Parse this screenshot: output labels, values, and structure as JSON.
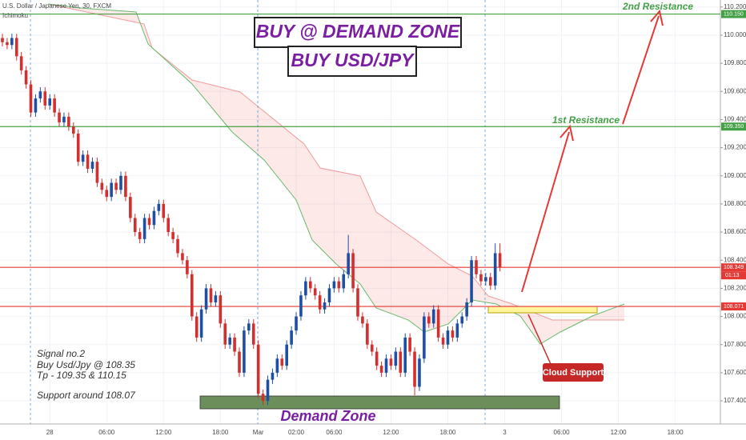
{
  "chart_data": {
    "type": "candlestick",
    "title": "U.S. Dollar / Japanese Yen, 30, FXCM",
    "indicator": "Ichimoku",
    "up_color": "#1f4fa3",
    "down_color": "#d32f2f",
    "grid": true,
    "ylim": [
      107.15,
      110.25
    ],
    "yticks": [
      {
        "value": 110.2,
        "label": "110.200"
      },
      {
        "value": 110.0,
        "label": "110.000"
      },
      {
        "value": 109.8,
        "label": "109.800"
      },
      {
        "value": 109.6,
        "label": "109.600"
      },
      {
        "value": 109.4,
        "label": "109.400"
      },
      {
        "value": 109.2,
        "label": "109.200"
      },
      {
        "value": 109.0,
        "label": "109.000"
      },
      {
        "value": 108.8,
        "label": "108.800"
      },
      {
        "value": 108.6,
        "label": "108.600"
      },
      {
        "value": 108.4,
        "label": "108.400"
      },
      {
        "value": 108.2,
        "label": "108.200"
      },
      {
        "value": 108.0,
        "label": "108.000"
      },
      {
        "value": 107.8,
        "label": "107.800"
      },
      {
        "value": 107.6,
        "label": "107.600"
      },
      {
        "value": 107.4,
        "label": "107.400"
      }
    ],
    "categories": [
      null,
      null,
      null,
      null,
      null,
      null,
      null,
      null,
      null,
      null,
      "28",
      null,
      null,
      null,
      null,
      null,
      null,
      null,
      null,
      null,
      null,
      null,
      "06:00",
      null,
      null,
      null,
      null,
      null,
      null,
      null,
      null,
      null,
      null,
      null,
      "12:00",
      null,
      null,
      null,
      null,
      null,
      null,
      null,
      null,
      null,
      null,
      null,
      "18:00",
      null,
      null,
      null,
      null,
      null,
      null,
      null,
      "Mar",
      null,
      null,
      null,
      null,
      null,
      null,
      null,
      "02:00",
      null,
      null,
      null,
      null,
      null,
      null,
      null,
      "06:00",
      null,
      null,
      null,
      null,
      null,
      null,
      null,
      null,
      null,
      null,
      null,
      "12:00",
      null,
      null,
      null,
      null,
      null,
      null,
      null,
      null,
      null,
      null,
      null,
      "18:00",
      null,
      null,
      null,
      null,
      null,
      null,
      null,
      null,
      null,
      null,
      null,
      "3",
      null,
      null,
      null,
      null,
      null,
      null,
      null,
      null,
      null,
      null,
      null,
      "06:00",
      null,
      null,
      null,
      null,
      null,
      null,
      null,
      null,
      null,
      null,
      null,
      "12:00",
      null,
      null,
      null,
      null,
      null,
      null,
      null,
      null,
      null,
      null,
      null,
      "18:00",
      null,
      null,
      null,
      null,
      null,
      null,
      null,
      null,
      null
    ],
    "open": [
      109.98,
      109.95,
      109.93,
      109.98,
      109.85,
      109.75,
      109.65,
      109.45,
      109.55,
      109.6,
      109.5,
      109.55,
      109.45,
      109.38,
      109.42,
      109.35,
      109.3,
      109.1,
      109.15,
      109.05,
      109.1,
      108.95,
      108.9,
      108.85,
      108.95,
      108.9,
      109.0,
      108.85,
      108.7,
      108.6,
      108.55,
      108.7,
      108.65,
      108.75,
      108.8,
      108.7,
      108.6,
      108.55,
      108.45,
      108.4,
      108.3,
      108.0,
      107.85,
      108.05,
      108.2,
      108.1,
      108.15,
      107.95,
      107.8,
      107.85,
      107.75,
      107.6,
      107.9,
      107.95,
      107.8,
      107.45,
      107.4,
      107.55,
      107.6,
      107.7,
      107.65,
      107.8,
      107.9,
      108.0,
      108.15,
      108.25,
      108.2,
      108.15,
      108.05,
      108.1,
      108.2,
      108.25,
      108.2,
      108.3,
      108.45,
      108.2,
      108.0,
      107.95,
      107.8,
      107.75,
      107.65,
      107.6,
      107.7,
      107.65,
      107.75,
      107.6,
      107.85,
      107.75,
      107.5,
      107.7,
      108.0,
      107.95,
      108.05,
      107.85,
      107.8,
      107.9,
      107.85,
      107.95,
      108.0,
      108.1,
      108.4,
      108.3,
      108.25,
      108.28,
      108.22,
      108.45,
      null,
      null,
      null,
      null,
      null,
      null,
      null,
      null,
      null,
      null,
      null,
      null,
      null,
      null,
      null,
      null,
      null,
      null,
      null,
      null,
      null,
      null,
      null,
      null,
      null,
      null,
      null,
      null,
      null,
      null,
      null,
      null,
      null,
      null,
      null,
      null,
      null,
      null,
      null,
      null,
      null,
      null,
      null,
      null,
      null,
      null
    ],
    "high": [
      110.01,
      109.98,
      110.01,
      110.01,
      109.88,
      109.78,
      109.68,
      109.58,
      109.63,
      109.63,
      109.58,
      109.58,
      109.48,
      109.45,
      109.45,
      109.38,
      109.33,
      109.18,
      109.18,
      109.13,
      109.13,
      108.98,
      108.93,
      108.98,
      108.98,
      109.03,
      109.03,
      108.88,
      108.73,
      108.63,
      108.73,
      108.73,
      108.78,
      108.83,
      108.83,
      108.73,
      108.63,
      108.58,
      108.48,
      108.43,
      108.33,
      108.03,
      108.08,
      108.23,
      108.23,
      108.18,
      108.18,
      107.98,
      107.88,
      107.88,
      107.78,
      107.93,
      107.98,
      107.98,
      107.83,
      107.48,
      107.58,
      107.63,
      107.73,
      107.73,
      107.83,
      107.93,
      108.03,
      108.18,
      108.28,
      108.28,
      108.23,
      108.18,
      108.13,
      108.23,
      108.28,
      108.28,
      108.33,
      108.58,
      108.48,
      108.23,
      108.03,
      107.98,
      107.83,
      107.78,
      107.68,
      107.73,
      107.73,
      107.78,
      107.78,
      107.88,
      107.88,
      107.78,
      107.73,
      108.03,
      108.03,
      108.08,
      108.08,
      107.88,
      107.93,
      107.93,
      107.98,
      108.03,
      108.13,
      108.43,
      108.43,
      108.33,
      108.31,
      108.31,
      108.52,
      108.52,
      null,
      null,
      null,
      null,
      null,
      null,
      null,
      null,
      null,
      null,
      null,
      null,
      null,
      null,
      null,
      null,
      null,
      null,
      null,
      null,
      null,
      null,
      null,
      null,
      null,
      null,
      null,
      null,
      null,
      null,
      null,
      null,
      null,
      null,
      null,
      null,
      null,
      null,
      null,
      null,
      null,
      null,
      null,
      null,
      null,
      null
    ],
    "low": [
      109.92,
      109.9,
      109.9,
      109.82,
      109.72,
      109.62,
      109.42,
      109.42,
      109.52,
      109.47,
      109.47,
      109.42,
      109.35,
      109.35,
      109.32,
      109.27,
      109.07,
      109.07,
      109.02,
      109.02,
      108.92,
      108.87,
      108.82,
      108.82,
      108.87,
      108.87,
      108.82,
      108.67,
      108.57,
      108.52,
      108.52,
      108.62,
      108.62,
      108.72,
      108.67,
      108.57,
      108.52,
      108.42,
      108.37,
      108.27,
      107.97,
      107.82,
      107.82,
      108.02,
      108.07,
      108.07,
      107.92,
      107.77,
      107.77,
      107.72,
      107.57,
      107.57,
      107.87,
      107.77,
      107.42,
      107.37,
      107.37,
      107.52,
      107.57,
      107.62,
      107.62,
      107.77,
      107.87,
      107.97,
      108.12,
      108.17,
      108.12,
      108.02,
      108.02,
      108.07,
      108.17,
      108.17,
      108.17,
      108.27,
      108.17,
      107.97,
      107.92,
      107.77,
      107.72,
      107.62,
      107.57,
      107.57,
      107.62,
      107.62,
      107.57,
      107.57,
      107.72,
      107.44,
      107.47,
      107.67,
      107.92,
      107.92,
      107.82,
      107.77,
      107.77,
      107.82,
      107.82,
      107.92,
      107.97,
      108.07,
      108.27,
      108.22,
      108.22,
      108.19,
      108.19,
      108.32,
      null,
      null,
      null,
      null,
      null,
      null,
      null,
      null,
      null,
      null,
      null,
      null,
      null,
      null,
      null,
      null,
      null,
      null,
      null,
      null,
      null,
      null,
      null,
      null,
      null,
      null,
      null,
      null,
      null,
      null,
      null,
      null,
      null,
      null,
      null,
      null,
      null,
      null,
      null,
      null,
      null,
      null,
      null,
      null,
      null,
      null
    ],
    "close": [
      109.95,
      109.93,
      109.98,
      109.85,
      109.75,
      109.65,
      109.45,
      109.55,
      109.6,
      109.5,
      109.55,
      109.45,
      109.38,
      109.42,
      109.35,
      109.3,
      109.1,
      109.15,
      109.05,
      109.1,
      108.95,
      108.9,
      108.85,
      108.95,
      108.9,
      109.0,
      108.85,
      108.7,
      108.6,
      108.55,
      108.7,
      108.65,
      108.75,
      108.8,
      108.7,
      108.6,
      108.55,
      108.45,
      108.4,
      108.3,
      108.0,
      107.85,
      108.05,
      108.2,
      108.1,
      108.15,
      107.95,
      107.8,
      107.85,
      107.75,
      107.6,
      107.9,
      107.95,
      107.8,
      107.45,
      107.4,
      107.55,
      107.6,
      107.7,
      107.65,
      107.8,
      107.9,
      108.0,
      108.15,
      108.25,
      108.2,
      108.15,
      108.05,
      108.1,
      108.2,
      108.25,
      108.2,
      108.3,
      108.45,
      108.2,
      108.0,
      107.95,
      107.8,
      107.75,
      107.65,
      107.6,
      107.7,
      107.65,
      107.75,
      107.6,
      107.85,
      107.75,
      107.5,
      107.7,
      108.0,
      107.95,
      108.05,
      107.85,
      107.8,
      107.9,
      107.85,
      107.95,
      108.0,
      108.1,
      108.4,
      108.3,
      108.25,
      108.28,
      108.22,
      108.45,
      108.35,
      null,
      null,
      null,
      null,
      null,
      null,
      null,
      null,
      null,
      null,
      null,
      null,
      null,
      null,
      null,
      null,
      null,
      null,
      null,
      null,
      null,
      null,
      null,
      null,
      null,
      null,
      null,
      null,
      null,
      null,
      null,
      null,
      null,
      null,
      null,
      null,
      null,
      null,
      null,
      null,
      null,
      null,
      null,
      null,
      null,
      null
    ],
    "levels": [
      {
        "value": 110.15,
        "label": "110.150",
        "color": "#43a047"
      },
      {
        "value": 109.35,
        "label": "109.350",
        "color": "#43a047"
      },
      {
        "value": 108.349,
        "label": "108.349",
        "color": "#e53935"
      },
      {
        "value": 108.071,
        "label": "108.071",
        "color": "#e53935"
      }
    ],
    "countdown": "01:13",
    "annotations": {
      "headline": "BUY @ DEMAND ZONE",
      "subheadline": "BUY USD/JPY",
      "resistance_2": "2nd Resistance",
      "resistance_1": "1st Resistance",
      "cloud_support": "Cloud Support",
      "demand_zone": "Demand Zone",
      "signal": [
        "Signal no.2",
        "Buy Usd/Jpy @ 108.35",
        "Tp - 109.35 & 110.15",
        "Support around 108.07"
      ]
    }
  }
}
